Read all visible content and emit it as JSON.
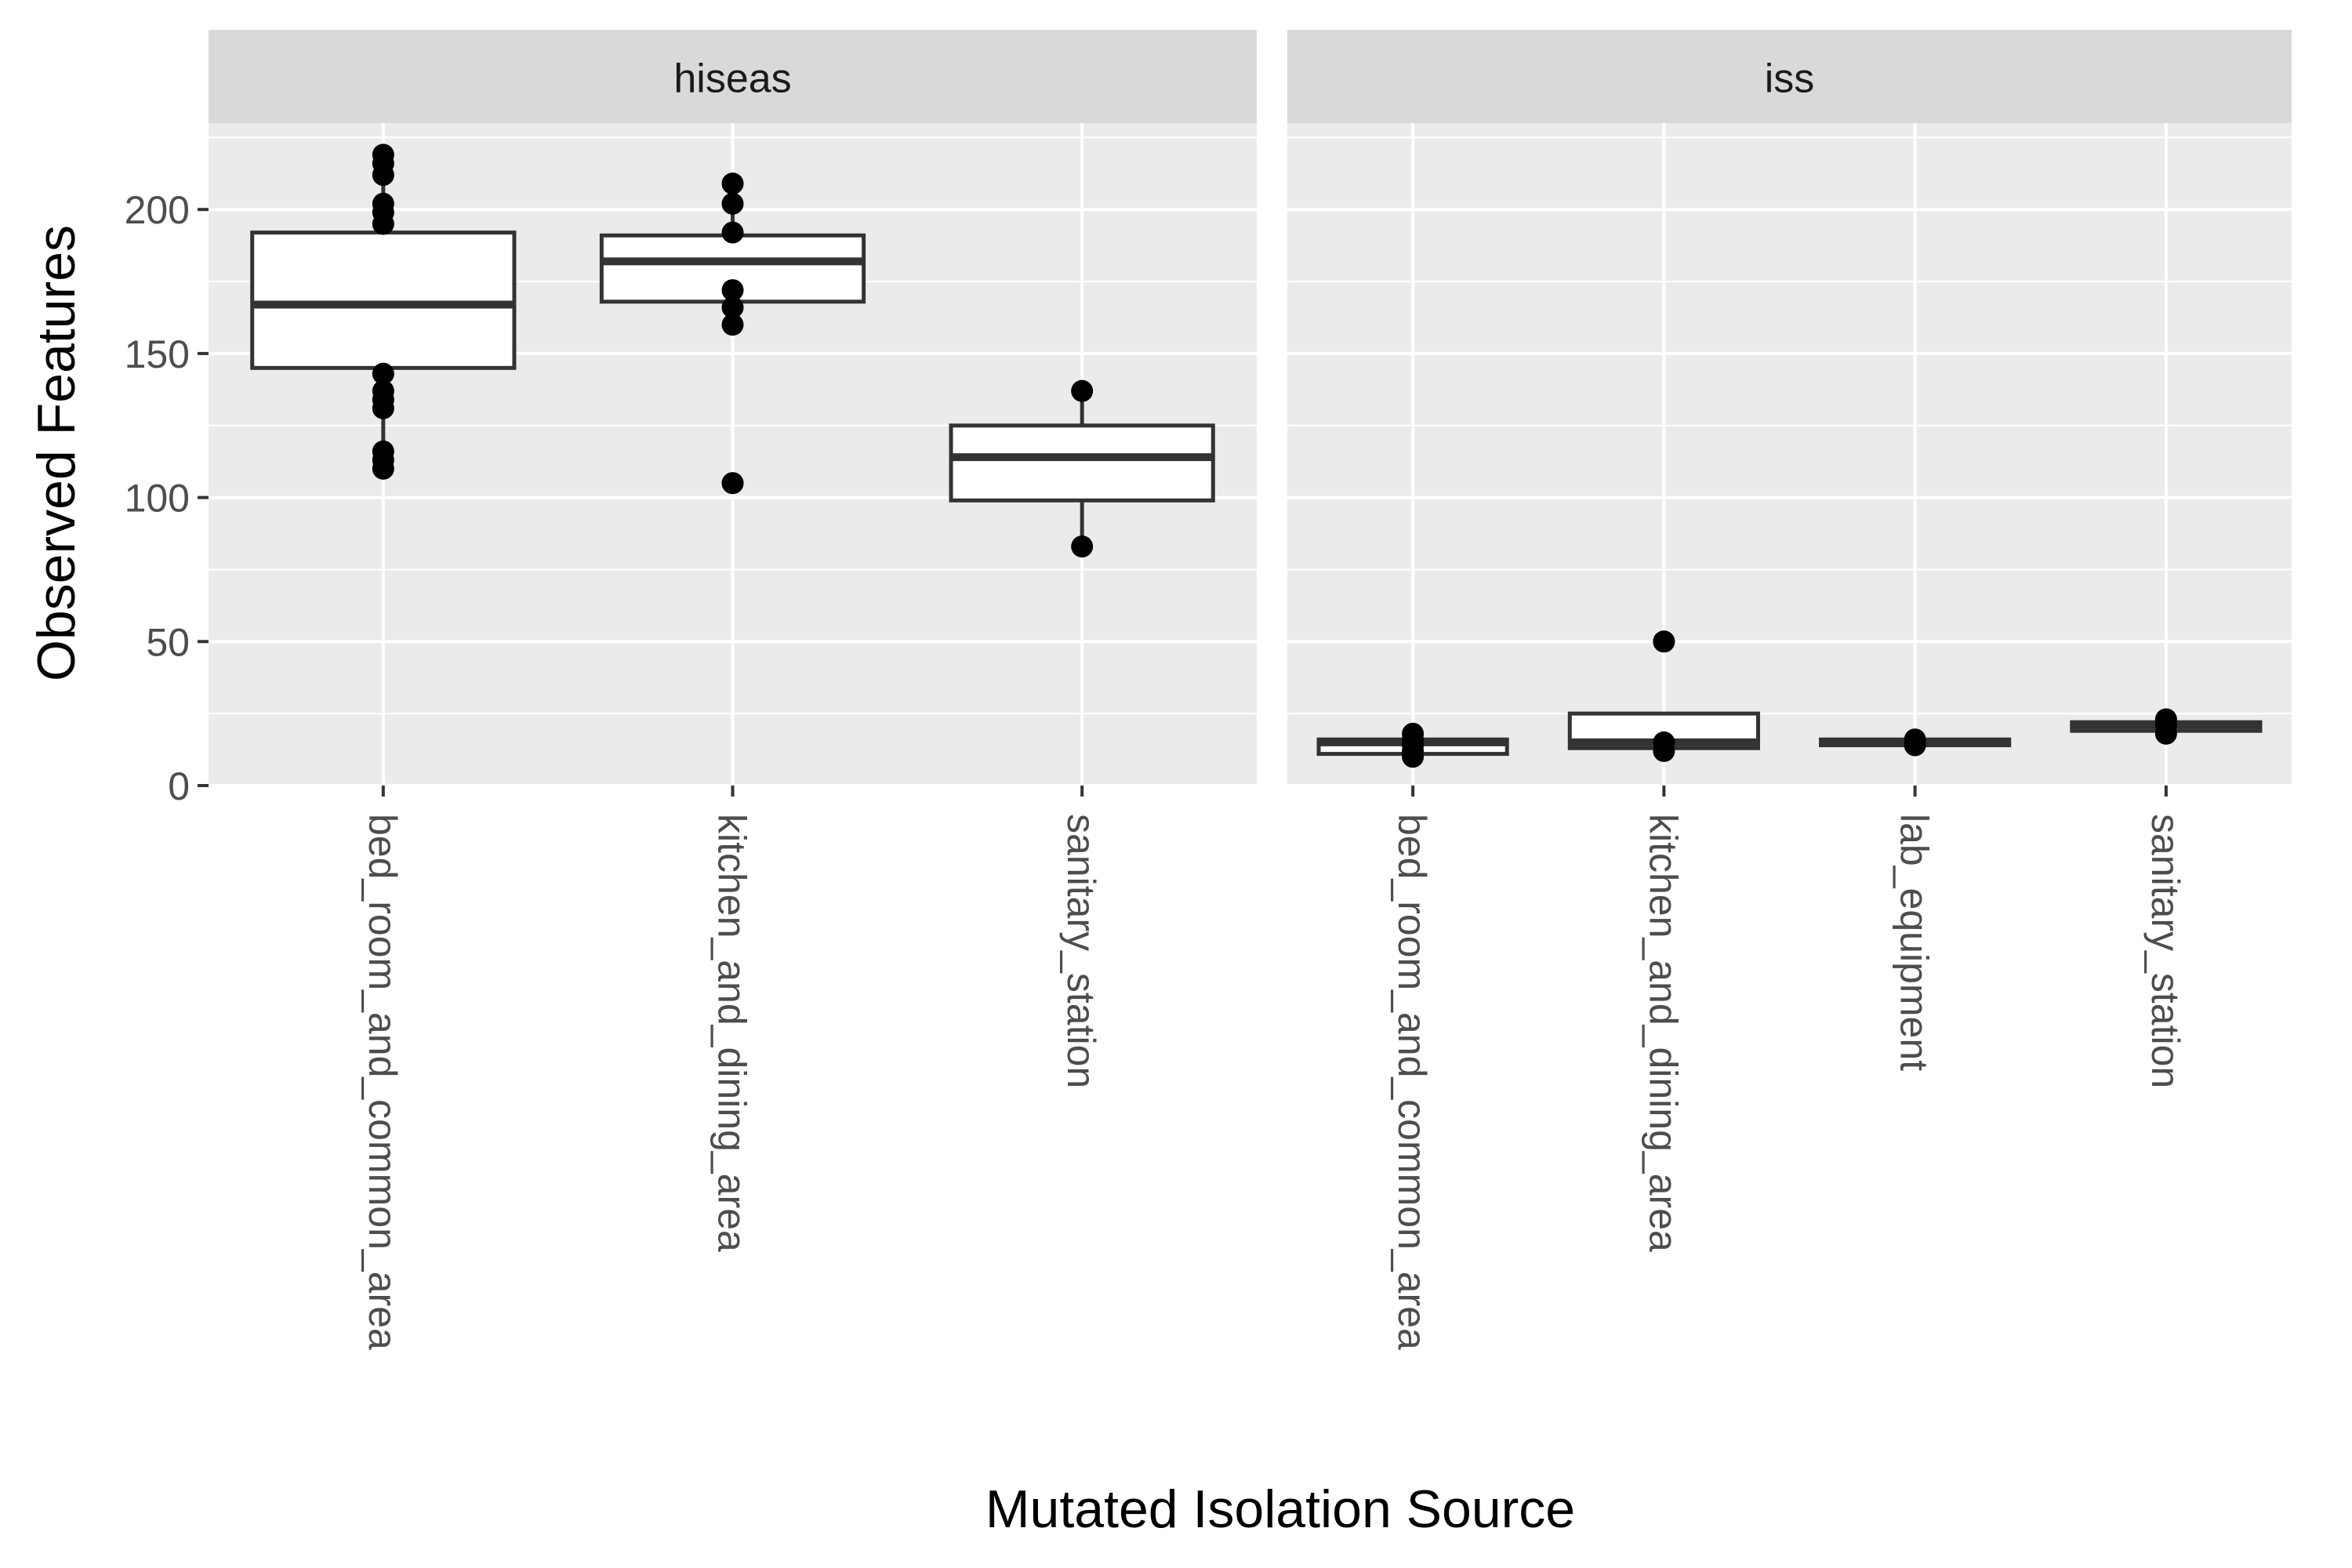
{
  "chart_data": {
    "type": "box",
    "xlabel": "Mutated Isolation Source",
    "ylabel": "Observed Features",
    "ylim": [
      0,
      230
    ],
    "yticks": [
      0,
      50,
      100,
      150,
      200
    ],
    "grid": true,
    "colors": {
      "panel_background": "#ebebeb",
      "strip_background": "#d9d9d9",
      "gridline": "#ffffff",
      "box_fill": "#ffffff",
      "box_line": "#333333",
      "point": "#000000",
      "tick_text": "#4d4d4d"
    },
    "panels": [
      {
        "label": "hiseas",
        "categories": [
          "bed_room_and_common_area",
          "kitchen_and_dining_area",
          "sanitary_station"
        ],
        "boxes": [
          {
            "category": "bed_room_and_common_area",
            "q1": 145,
            "median": 167,
            "q3": 192,
            "whisker_low": 110,
            "whisker_high": 219,
            "outliers": []
          },
          {
            "category": "kitchen_and_dining_area",
            "q1": 168,
            "median": 182,
            "q3": 191,
            "whisker_low": 160,
            "whisker_high": 209,
            "outliers": [
              105
            ]
          },
          {
            "category": "sanitary_station",
            "q1": 99,
            "median": 114,
            "q3": 125,
            "whisker_low": 83,
            "whisker_high": 137,
            "outliers": []
          }
        ],
        "points": [
          {
            "category": "bed_room_and_common_area",
            "values": [
              219,
              216,
              212,
              202,
              199,
              195,
              143,
              137,
              134,
              131,
              116,
              113,
              110
            ]
          },
          {
            "category": "kitchen_and_dining_area",
            "values": [
              209,
              202,
              192,
              172,
              166,
              160,
              105
            ]
          },
          {
            "category": "sanitary_station",
            "values": [
              137,
              83
            ]
          }
        ]
      },
      {
        "label": "iss",
        "categories": [
          "bed_room_and_common_area",
          "kitchen_and_dining_area",
          "lab_equipment",
          "sanitary_station"
        ],
        "boxes": [
          {
            "category": "bed_room_and_common_area",
            "q1": 11,
            "median": 15,
            "q3": 16,
            "whisker_low": 10,
            "whisker_high": 18,
            "outliers": []
          },
          {
            "category": "kitchen_and_dining_area",
            "q1": 13,
            "median": 15,
            "q3": 25,
            "whisker_low": 12,
            "whisker_high": 25,
            "outliers": [
              50
            ]
          },
          {
            "category": "lab_equipment",
            "q1": 14,
            "median": 15,
            "q3": 16,
            "whisker_low": 14,
            "whisker_high": 16,
            "outliers": []
          },
          {
            "category": "sanitary_station",
            "q1": 19,
            "median": 21,
            "q3": 22,
            "whisker_low": 18,
            "whisker_high": 23,
            "outliers": []
          }
        ],
        "points": [
          {
            "category": "bed_room_and_common_area",
            "values": [
              18,
              16,
              14,
              12,
              10
            ]
          },
          {
            "category": "kitchen_and_dining_area",
            "values": [
              50,
              15,
              12
            ]
          },
          {
            "category": "lab_equipment",
            "values": [
              16,
              15,
              14
            ]
          },
          {
            "category": "sanitary_station",
            "values": [
              23,
              21,
              18
            ]
          }
        ]
      }
    ]
  }
}
